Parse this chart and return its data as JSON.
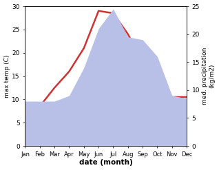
{
  "months": [
    "Jan",
    "Feb",
    "Mar",
    "Apr",
    "May",
    "Jun",
    "Jul",
    "Aug",
    "Sep",
    "Oct",
    "Nov",
    "Dec"
  ],
  "month_indices": [
    0,
    1,
    2,
    3,
    4,
    5,
    6,
    7,
    8,
    9,
    10,
    11
  ],
  "max_temp": [
    7.0,
    8.5,
    12.5,
    16.0,
    21.0,
    29.0,
    28.5,
    24.0,
    18.0,
    11.0,
    10.5,
    10.5
  ],
  "precipitation": [
    8.0,
    8.0,
    8.0,
    9.0,
    14.0,
    21.0,
    24.5,
    19.5,
    19.0,
    16.0,
    9.0,
    8.5
  ],
  "temp_color": "#cc3333",
  "precip_fill_color": "#b8c0e8",
  "temp_ylim": [
    0,
    30
  ],
  "precip_ylim": [
    0,
    25
  ],
  "temp_yticks": [
    0,
    5,
    10,
    15,
    20,
    25,
    30
  ],
  "precip_yticks": [
    0,
    5,
    10,
    15,
    20,
    25
  ],
  "xlabel": "date (month)",
  "ylabel_left": "max temp (C)",
  "ylabel_right": "med. precipitation\n(kg/m2)",
  "background_color": "#ffffff",
  "line_width": 1.8
}
